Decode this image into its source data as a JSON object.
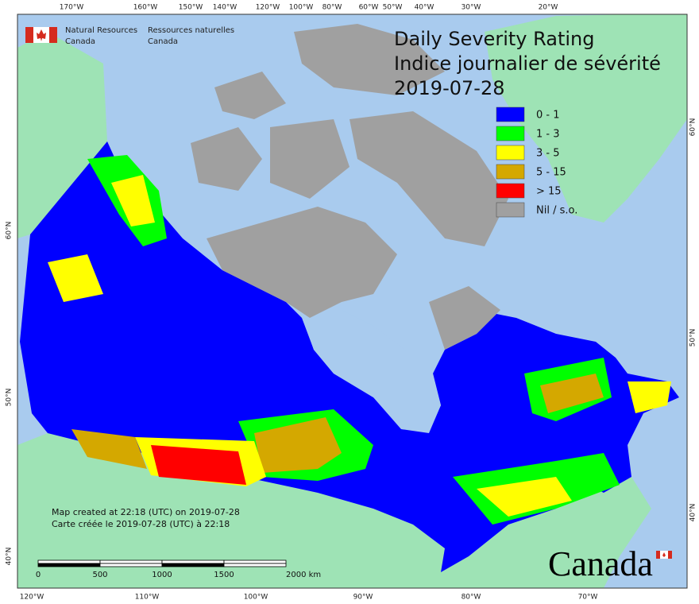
{
  "header": {
    "agency_en": [
      "Natural Resources",
      "Canada"
    ],
    "agency_fr": [
      "Ressources naturelles",
      "Canada"
    ]
  },
  "title": [
    "Daily Severity Rating",
    "Indice journalier de sévérité",
    "2019-07-28"
  ],
  "legend": [
    {
      "label": "0 - 1",
      "color": "#0000ff"
    },
    {
      "label": "1 - 3",
      "color": "#00ff00"
    },
    {
      "label": "3 - 5",
      "color": "#ffff00"
    },
    {
      "label": "5 - 15",
      "color": "#d4a800"
    },
    {
      "label": "> 15",
      "color": "#ff0000"
    },
    {
      "label": "Nil / s.o.",
      "color": "#a0a0a0"
    }
  ],
  "graticule": {
    "top": [
      "170°W",
      "160°W",
      "150°W",
      "140°W",
      "120°W",
      "100°W",
      "80°W",
      "60°W",
      "50°W",
      "40°W",
      "30°W",
      "20°W"
    ],
    "bottom": [
      "120°W",
      "110°W",
      "100°W",
      "90°W",
      "80°W",
      "70°W"
    ],
    "left": [
      "60°N",
      "50°N",
      "40°N"
    ],
    "right": [
      "60°N",
      "50°N",
      "40°N"
    ]
  },
  "footer": [
    "Map created at 22:18 (UTC) on 2019-07-28",
    "Carte créée le 2019-07-28 (UTC) à 22:18"
  ],
  "scale_bar": [
    "0",
    "500",
    "1000",
    "1500",
    "2000 km"
  ],
  "wordmark": "Canada"
}
